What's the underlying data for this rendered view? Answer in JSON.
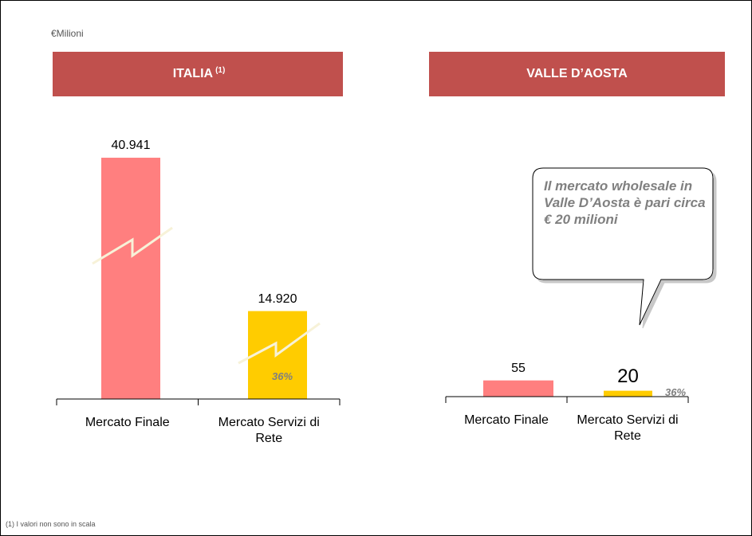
{
  "unit": "€Milioni",
  "footnote": "(1) I valori non sono in scala",
  "chart_data": [
    {
      "type": "bar",
      "title": "ITALIA",
      "title_note": "(1)",
      "categories": [
        "Mercato Finale",
        "Mercato Servizi di Rete"
      ],
      "values": [
        40941,
        14920
      ],
      "value_labels": [
        "40.941",
        "14.920"
      ],
      "colors": [
        "#ff7f7f",
        "#ffcc00"
      ],
      "ylim": [
        0,
        45000
      ],
      "annotation": "36%"
    },
    {
      "type": "bar",
      "title": "VALLE D’AOSTA",
      "categories": [
        "Mercato Finale",
        "Mercato Servizi di Rete"
      ],
      "values": [
        55,
        20
      ],
      "colors": [
        "#ff7f7f",
        "#ffcc00"
      ],
      "ylim": [
        0,
        900
      ],
      "annotation": "36%",
      "callout": "Il mercato wholesale in Valle D’Aosta è pari circa € 20 milioni"
    }
  ]
}
